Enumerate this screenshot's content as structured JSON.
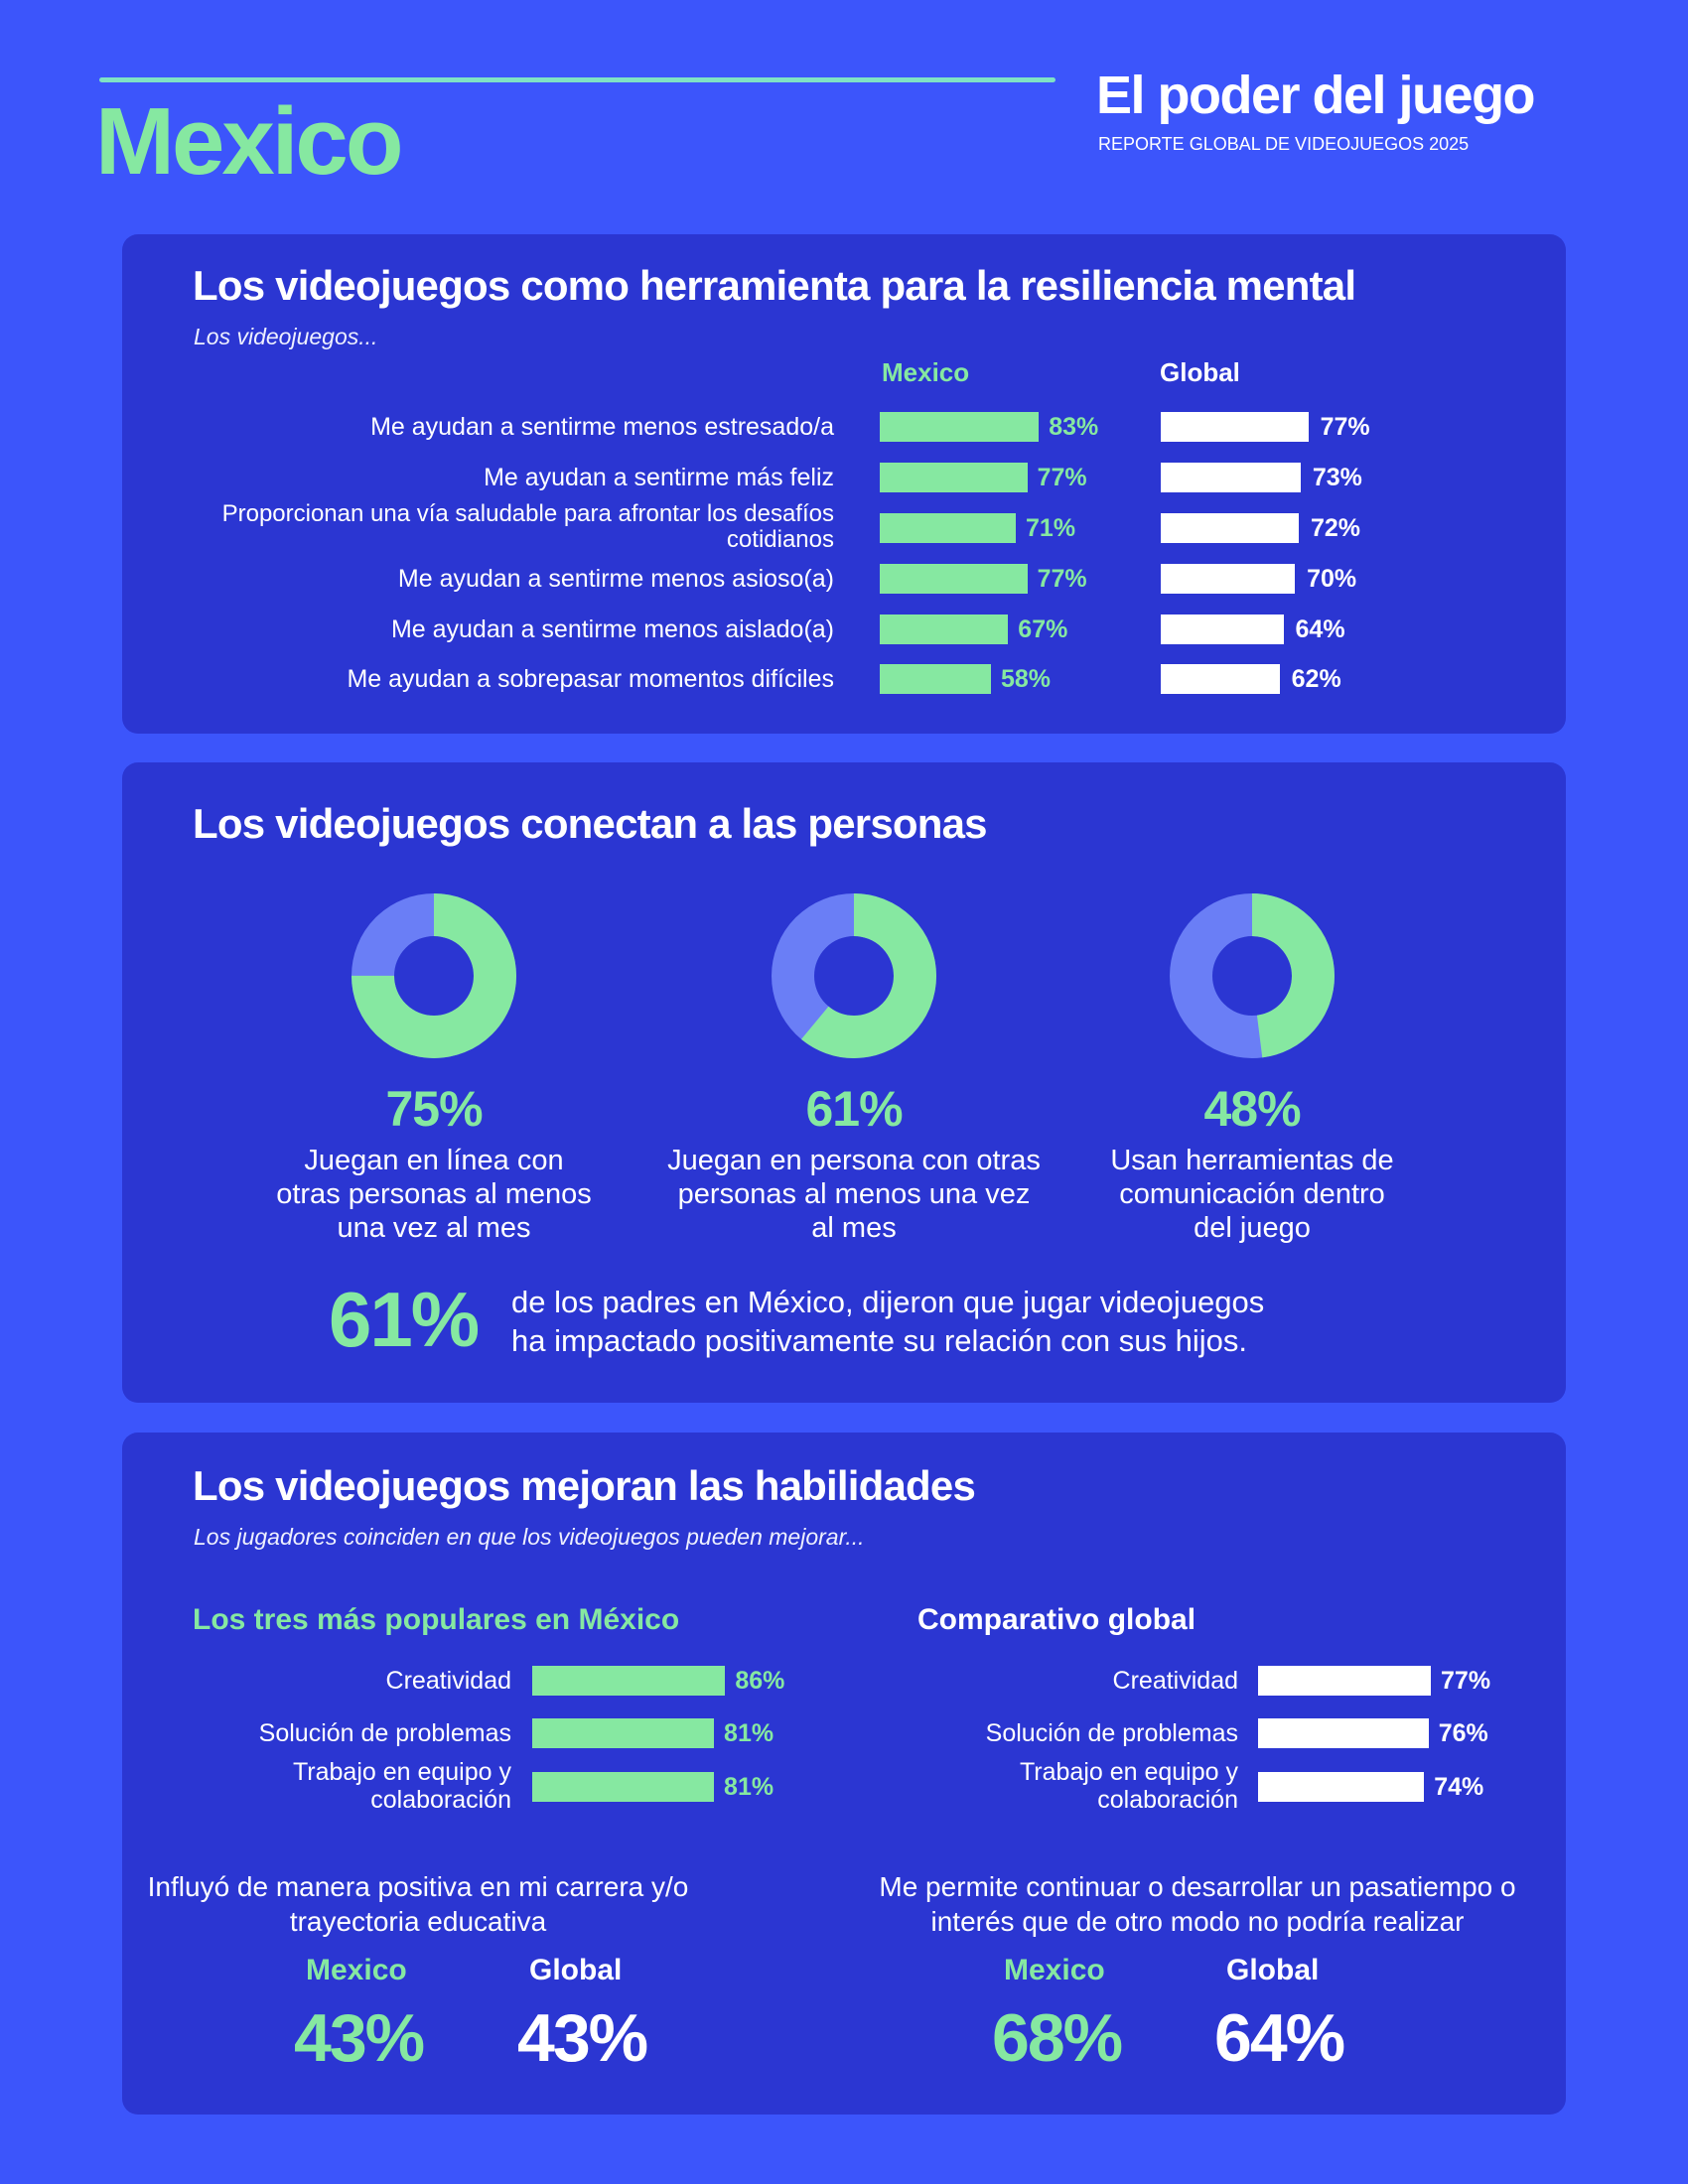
{
  "header": {
    "country": "Mexico",
    "report_title": "El poder del juego",
    "report_subtitle": "REPORTE GLOBAL DE VIDEOJUEGOS 2025"
  },
  "colors": {
    "background": "#3c55fb",
    "card": "#2b36d2",
    "mexico_accent": "#86e8a1",
    "global": "#ffffff",
    "donut_remainder": "#6a7ef6"
  },
  "resilience": {
    "title": "Los videojuegos como herramienta para la resiliencia mental",
    "subtitle": "Los videojuegos...",
    "mexico_label": "Mexico",
    "global_label": "Global",
    "rows": [
      {
        "label": "Me ayudan a sentirme menos estresado/a",
        "mexico": 83,
        "mexico_text": "83%",
        "global": 77,
        "global_text": "77%"
      },
      {
        "label": "Me ayudan a sentirme más feliz",
        "mexico": 77,
        "mexico_text": "77%",
        "global": 73,
        "global_text": "73%"
      },
      {
        "label": "Proporcionan una vía saludable para afrontar los desafíos cotidianos",
        "mexico": 71,
        "mexico_text": "71%",
        "global": 72,
        "global_text": "72%"
      },
      {
        "label": "Me ayudan a sentirme menos asioso(a)",
        "mexico": 77,
        "mexico_text": "77%",
        "global": 70,
        "global_text": "70%"
      },
      {
        "label": "Me ayudan a sentirme menos aislado(a)",
        "mexico": 67,
        "mexico_text": "67%",
        "global": 64,
        "global_text": "64%"
      },
      {
        "label": "Me ayudan a sobrepasar momentos difíciles",
        "mexico": 58,
        "mexico_text": "58%",
        "global": 62,
        "global_text": "62%"
      }
    ]
  },
  "connect": {
    "title": "Los videojuegos conectan a las personas",
    "donuts": [
      {
        "value": 75,
        "text": "75%",
        "caption": "Juegan en línea con otras personas al menos una vez al mes"
      },
      {
        "value": 61,
        "text": "61%",
        "caption": "Juegan en persona con otras personas al menos una vez al mes"
      },
      {
        "value": 48,
        "text": "48%",
        "caption": "Usan herramientas de comunicación dentro del juego"
      }
    ],
    "parents_pct": "61%",
    "parents_line1": "de los padres en México, dijeron que jugar videojuegos",
    "parents_line2": "ha impactado positivamente su relación con sus hijos."
  },
  "skills": {
    "title": "Los videojuegos mejoran las habilidades",
    "subtitle": "Los jugadores coinciden en que los videojuegos pueden mejorar...",
    "mexico_heading": "Los tres más populares en México",
    "global_heading": "Comparativo global",
    "mexico_rows": [
      {
        "label": "Creatividad",
        "value": 86,
        "text": "86%"
      },
      {
        "label": "Solución de problemas",
        "value": 81,
        "text": "81%"
      },
      {
        "label": "Trabajo en equipo y colaboración",
        "value": 81,
        "text": "81%"
      }
    ],
    "global_rows": [
      {
        "label": "Creatividad",
        "value": 77,
        "text": "77%"
      },
      {
        "label": "Solución de problemas",
        "value": 76,
        "text": "76%"
      },
      {
        "label": "Trabajo en equipo y colaboración",
        "value": 74,
        "text": "74%"
      }
    ],
    "stats": [
      {
        "question": "Influyó de manera positiva en mi carrera y/o trayectoria educativa",
        "mexico_label": "Mexico",
        "global_label": "Global",
        "mexico": "43%",
        "global": "43%"
      },
      {
        "question": "Me permite continuar o desarrollar un pasatiempo o interés que de otro modo no podría realizar",
        "mexico_label": "Mexico",
        "global_label": "Global",
        "mexico": "68%",
        "global": "64%"
      }
    ]
  }
}
